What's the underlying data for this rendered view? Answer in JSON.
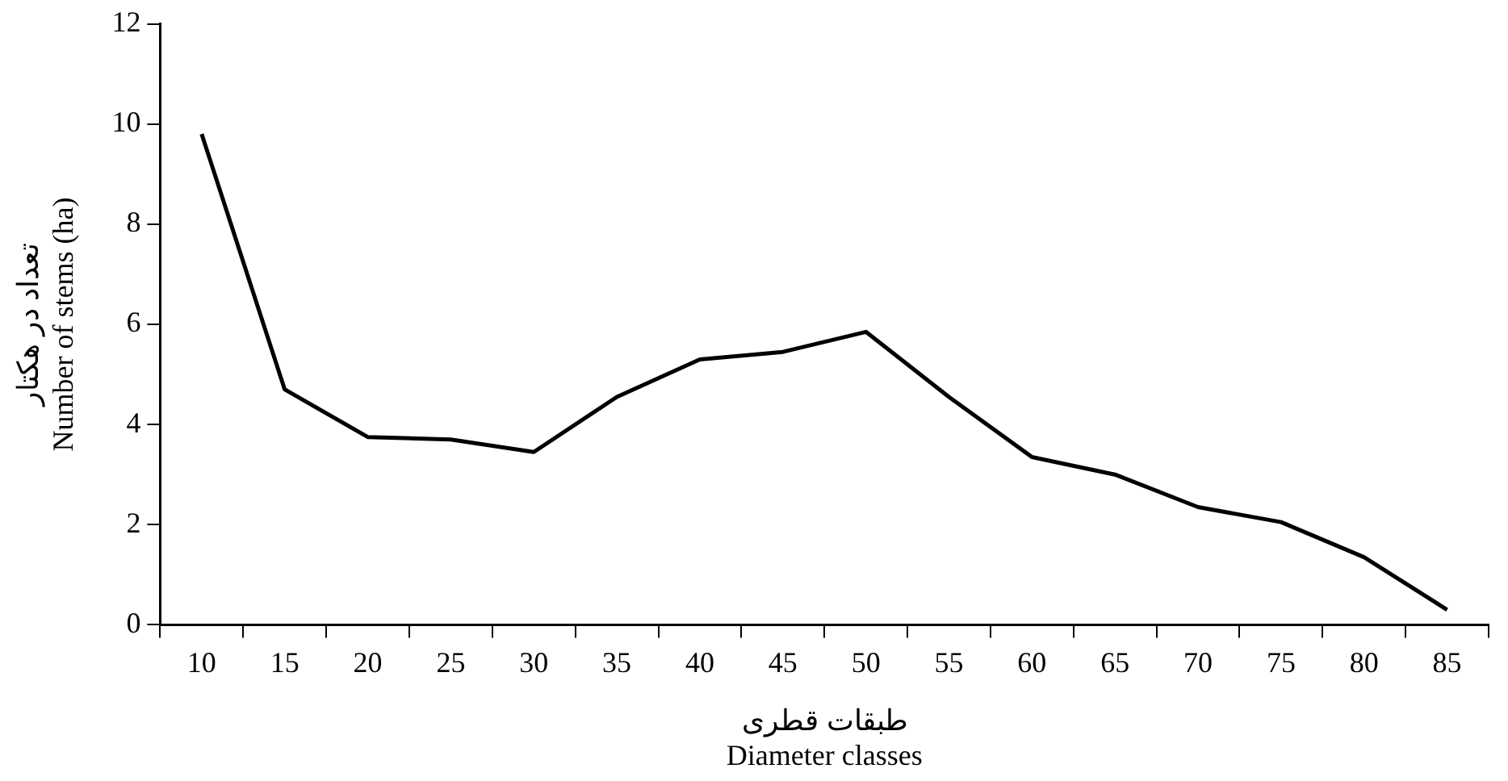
{
  "chart_data": {
    "type": "line",
    "xlabel": "طبقات قطری\nDiameter classes",
    "ylabel": "تعداد در هکتار\nNumber of stems (ha)",
    "categories": [
      "10",
      "15",
      "20",
      "25",
      "30",
      "35",
      "40",
      "45",
      "50",
      "55",
      "60",
      "65",
      "70",
      "75",
      "80",
      "85"
    ],
    "series": [
      {
        "color": "#000000",
        "values": [
          9.8,
          4.7,
          3.75,
          3.7,
          3.45,
          4.55,
          5.3,
          5.45,
          5.85,
          4.55,
          3.35,
          3.0,
          2.35,
          2.05,
          1.35,
          0.3
        ]
      }
    ],
    "ylim": [
      0,
      12
    ],
    "yticks": [
      0,
      2,
      4,
      6,
      8,
      10,
      12
    ],
    "grid": false,
    "legend": false,
    "marker": "none",
    "line_style": "solid"
  }
}
